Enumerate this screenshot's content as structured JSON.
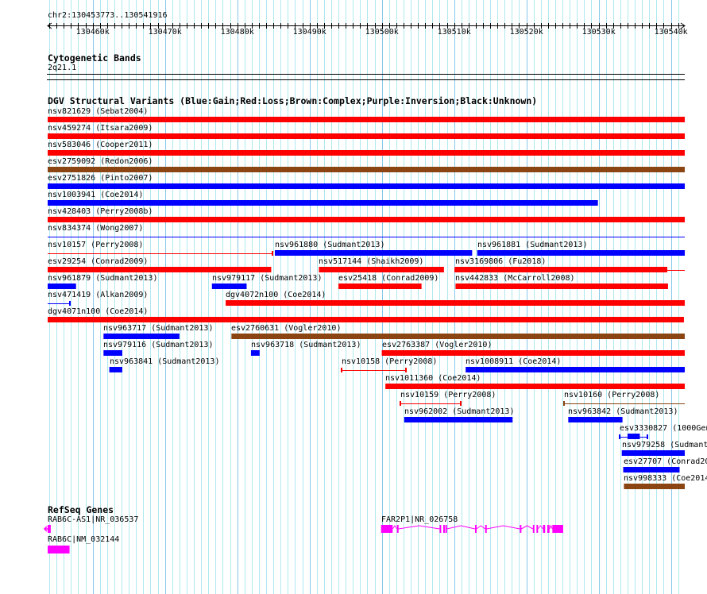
{
  "position": "chr2:130453773..130541916",
  "view": {
    "start_kb": 130453.773,
    "end_kb": 130541.916
  },
  "ruler": {
    "ticks_kb": [
      130460,
      130470,
      130480,
      130490,
      130500,
      130510,
      130520,
      130530,
      130540
    ],
    "tick_labels": [
      "130460k",
      "130470k",
      "130480k",
      "130490k",
      "130500k",
      "130510k",
      "130520k",
      "130530k",
      "130540k"
    ]
  },
  "colors": {
    "gain": "#0000ff",
    "loss": "#ff0000",
    "complex": "#8b4513",
    "gene": "#ff00ff",
    "grid_minor": "#aee9ef",
    "grid_major": "#86c9ea"
  },
  "tracks": {
    "cytoband": {
      "title": "Cytogenetic Bands",
      "band": "2q21.1"
    },
    "dgv": {
      "title": "DGV Structural Variants (Blue:Gain;Red:Loss;Brown:Complex;Purple:Inversion;Black:Unknown)",
      "rows": [
        [
          {
            "label": "nsv821629 (Sebat2004)",
            "type": "loss",
            "style": "thick",
            "start": 130453.773,
            "end": 130541.916
          }
        ],
        [
          {
            "label": "nsv459274 (Itsara2009)",
            "type": "loss",
            "style": "thick",
            "start": 130453.773,
            "end": 130541.916
          }
        ],
        [
          {
            "label": "nsv583046 (Cooper2011)",
            "type": "loss",
            "style": "thick",
            "start": 130453.773,
            "end": 130541.916
          }
        ],
        [
          {
            "label": "esv2759092 (Redon2006)",
            "type": "complex",
            "style": "thick",
            "start": 130453.773,
            "end": 130541.916
          }
        ],
        [
          {
            "label": "esv2751826 (Pinto2007)",
            "type": "gain",
            "style": "thick",
            "start": 130453.773,
            "end": 130541.916
          }
        ],
        [
          {
            "label": "nsv1003941 (Coe2014)",
            "type": "gain",
            "style": "thick",
            "start": 130453.773,
            "end": 130529.9
          }
        ],
        [
          {
            "label": "nsv428403 (Perry2008b)",
            "type": "loss",
            "style": "thick",
            "start": 130453.773,
            "end": 130541.916
          }
        ],
        [
          {
            "label": "nsv834374 (Wong2007)",
            "type": "gain",
            "style": "thin",
            "start": 130440.0,
            "end": 130560.0
          }
        ],
        [
          {
            "label": "nsv10157 (Perry2008)",
            "type": "loss",
            "style": "thin",
            "start": 130440.0,
            "end": 130484.9
          },
          {
            "label": "nsv961880 (Sudmant2013)",
            "type": "gain",
            "style": "thick",
            "start": 130485.2,
            "end": 130512.5
          },
          {
            "label": "nsv961881 (Sudmant2013)",
            "type": "gain",
            "style": "thick",
            "start": 130513.2,
            "end": 130541.916
          }
        ],
        [
          {
            "label": "esv29254 (Conrad2009)",
            "type": "loss",
            "style": "thick",
            "start": 130453.773,
            "end": 130484.7
          },
          {
            "label": "nsv517144 (Shaikh2009)",
            "type": "loss",
            "style": "thick",
            "start": 130491.3,
            "end": 130508.6
          },
          {
            "label": "nsv3169806 (Fu2018)",
            "type": "loss",
            "style": "mixed",
            "start": 130510.1,
            "end": 130560.0,
            "thick_start": 130510.1,
            "thick_end": 130539.5
          }
        ],
        [
          {
            "label": "nsv961879 (Sudmant2013)",
            "type": "gain",
            "style": "thick",
            "start": 130453.773,
            "end": 130457.7
          },
          {
            "label": "nsv979117 (Sudmant2013)",
            "type": "gain",
            "style": "thick",
            "start": 130476.5,
            "end": 130481.3
          },
          {
            "label": "esv25418 (Conrad2009)",
            "type": "loss",
            "style": "thick",
            "start": 130494.0,
            "end": 130505.5
          },
          {
            "label": "nsv442833 (McCarroll2008)",
            "type": "loss",
            "style": "thick",
            "start": 130510.2,
            "end": 130539.6
          }
        ],
        [
          {
            "label": "nsv471419 (Alkan2009)",
            "type": "gain",
            "style": "thin",
            "start": 130440.0,
            "end": 130456.8
          },
          {
            "label": "dgv4072n100 (Coe2014)",
            "type": "loss",
            "style": "thick",
            "start": 130478.4,
            "end": 130541.916
          }
        ],
        [
          {
            "label": "dgv4071n100 (Coe2014)",
            "type": "loss",
            "style": "thick",
            "start": 130453.773,
            "end": 130541.8
          }
        ],
        [
          {
            "label": "nsv963717 (Sudmant2013)",
            "type": "gain",
            "style": "thick",
            "start": 130461.5,
            "end": 130472.0
          },
          {
            "label": "esv2760631 (Vogler2010)",
            "type": "complex",
            "style": "thick",
            "start": 130479.2,
            "end": 130541.916
          }
        ],
        [
          {
            "label": "nsv979116 (Sudmant2013)",
            "type": "gain",
            "style": "thick",
            "start": 130461.5,
            "end": 130464.1
          },
          {
            "label": "nsv963718 (Sudmant2013)",
            "type": "gain",
            "style": "thick",
            "start": 130481.9,
            "end": 130483.1
          },
          {
            "label": "esv2763387 (Vogler2010)",
            "type": "loss",
            "style": "thick",
            "start": 130500.0,
            "end": 130541.916
          }
        ],
        [
          {
            "label": "nsv963841 (Sudmant2013)",
            "type": "gain",
            "style": "thick",
            "start": 130462.3,
            "end": 130464.1
          },
          {
            "label": "nsv10158 (Perry2008)",
            "type": "loss",
            "style": "thin",
            "start": 130494.4,
            "end": 130503.3
          },
          {
            "label": "nsv1008911 (Coe2014)",
            "type": "gain",
            "style": "thick",
            "start": 130511.6,
            "end": 130541.916
          }
        ],
        [
          {
            "label": "nsv1011360 (Coe2014)",
            "type": "loss",
            "style": "thick",
            "start": 130500.5,
            "end": 130541.916
          }
        ],
        [
          {
            "label": "nsv10159 (Perry2008)",
            "type": "loss",
            "style": "thin",
            "start": 130502.6,
            "end": 130510.9
          },
          {
            "label": "nsv10160 (Perry2008)",
            "type": "complex",
            "style": "thin",
            "start": 130525.2,
            "end": 130560.0
          }
        ],
        [
          {
            "label": "nsv962002 (Sudmant2013)",
            "type": "gain",
            "style": "thick",
            "start": 130503.1,
            "end": 130518.1
          },
          {
            "label": "nsv963842 (Sudmant2013)",
            "type": "gain",
            "style": "thick",
            "start": 130525.8,
            "end": 130533.3
          }
        ],
        [
          {
            "label": "esv3330827 (1000Gen",
            "type": "gain",
            "style": "mixed",
            "start": 130532.9,
            "end": 130536.7,
            "thick_start": 130534.0,
            "thick_end": 130535.7
          }
        ],
        [
          {
            "label": "nsv979258 (Sudmant",
            "type": "gain",
            "style": "thick",
            "start": 130533.2,
            "end": 130541.916
          }
        ],
        [
          {
            "label": "esv27707 (Conrad20",
            "type": "gain",
            "style": "thick",
            "start": 130533.4,
            "end": 130541.2
          }
        ],
        [
          {
            "label": "nsv998333 (Coe2014",
            "type": "complex",
            "style": "thick",
            "start": 130533.5,
            "end": 130541.916
          }
        ]
      ]
    },
    "refseq": {
      "title": "RefSeq Genes",
      "genes": [
        {
          "label": "RAB6C-AS1|NR_036537",
          "strand": "-",
          "row": 0,
          "start": 130450.0,
          "end": 130454.2,
          "exons": [
            [
              130453.773,
              130454.2
            ]
          ]
        },
        {
          "label": "FAR2P1|NR_026758",
          "strand": "+",
          "row": 0,
          "start": 130499.9,
          "end": 130525.1,
          "exons": [
            [
              130499.9,
              130501.5
            ],
            [
              130502.1,
              130502.3
            ],
            [
              130508.0,
              130508.2
            ],
            [
              130508.5,
              130508.7
            ],
            [
              130508.8,
              130509.0
            ],
            [
              130512.9,
              130513.1
            ],
            [
              130514.3,
              130514.5
            ],
            [
              130519.1,
              130519.3
            ],
            [
              130520.9,
              130521.1
            ],
            [
              130521.4,
              130521.6
            ],
            [
              130522.3,
              130522.6
            ],
            [
              130522.9,
              130523.2
            ],
            [
              130523.6,
              130525.1
            ]
          ]
        },
        {
          "label": "RAB6C|NM_032144",
          "strand": "+",
          "row": 1,
          "start": 130453.6,
          "end": 130456.8,
          "exons": [
            [
              130453.6,
              130456.8
            ]
          ]
        }
      ]
    }
  }
}
